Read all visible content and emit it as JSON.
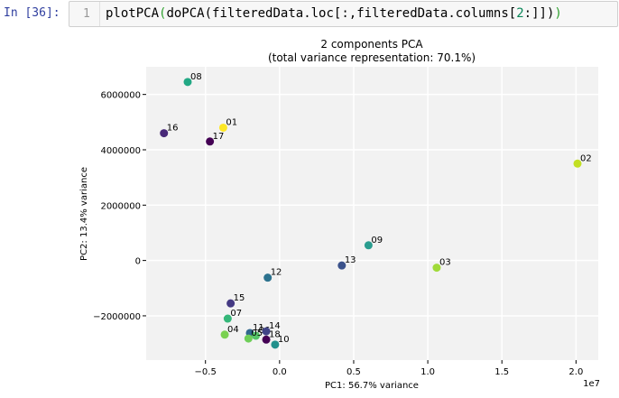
{
  "cell": {
    "prompt": "In [36]:",
    "line_number": "1",
    "code": {
      "fn": "plotPCA",
      "open1": "(",
      "fn2": "doPCA",
      "open2": "(",
      "arg": "filteredData.loc[:,filteredData.columns[",
      "num": "2",
      "tail": ":]]",
      "close2": ")",
      "close1": ")"
    }
  },
  "colors": {
    "plot_background": "#f2f2f2",
    "grid": "#ffffff",
    "code_paren": "#2ea02e",
    "prompt": "#303f9f"
  },
  "chart_data": {
    "type": "scatter",
    "title_line1": "2 components PCA",
    "title_line2": "(total variance representation: 70.1%)",
    "xlabel": "PC1: 56.7% variance",
    "ylabel": "PC2: 13.4% variance",
    "x_offset_label": "1e7",
    "xlim": [
      -0.9,
      2.15
    ],
    "ylim": [
      -3600000,
      7000000
    ],
    "x_scale": "1e7",
    "xticks": [
      -0.5,
      0.0,
      0.5,
      1.0,
      1.5,
      2.0
    ],
    "xtick_labels": [
      "−0.5",
      "0.0",
      "0.5",
      "1.0",
      "1.5",
      "2.0"
    ],
    "yticks": [
      -2000000,
      0,
      2000000,
      4000000,
      6000000
    ],
    "ytick_labels": [
      "−2000000",
      "0",
      "2000000",
      "4000000",
      "6000000"
    ],
    "grid": true,
    "points": [
      {
        "label": "08",
        "x": -0.62,
        "y": 6450000,
        "color": "#22a884"
      },
      {
        "label": "16",
        "x": -0.78,
        "y": 4600000,
        "color": "#482878"
      },
      {
        "label": "01",
        "x": -0.38,
        "y": 4800000,
        "color": "#fde725"
      },
      {
        "label": "17",
        "x": -0.47,
        "y": 4300000,
        "color": "#440154"
      },
      {
        "label": "02",
        "x": 2.01,
        "y": 3500000,
        "color": "#c2df23"
      },
      {
        "label": "09",
        "x": 0.6,
        "y": 550000,
        "color": "#2a9d8f"
      },
      {
        "label": "13",
        "x": 0.42,
        "y": -180000,
        "color": "#3b528b"
      },
      {
        "label": "03",
        "x": 1.06,
        "y": -260000,
        "color": "#a0da39"
      },
      {
        "label": "12",
        "x": -0.08,
        "y": -620000,
        "color": "#2c728e"
      },
      {
        "label": "15",
        "x": -0.33,
        "y": -1550000,
        "color": "#443983"
      },
      {
        "label": "07",
        "x": -0.35,
        "y": -2100000,
        "color": "#35b779"
      },
      {
        "label": "04",
        "x": -0.37,
        "y": -2680000,
        "color": "#7ad151"
      },
      {
        "label": "11",
        "x": -0.2,
        "y": -2620000,
        "color": "#31688e"
      },
      {
        "label": "06",
        "x": -0.16,
        "y": -2720000,
        "color": "#54c568"
      },
      {
        "label": "05",
        "x": -0.21,
        "y": -2820000,
        "color": "#6ece58"
      },
      {
        "label": "14",
        "x": -0.09,
        "y": -2560000,
        "color": "#414487"
      },
      {
        "label": "18",
        "x": -0.09,
        "y": -2860000,
        "color": "#440154"
      },
      {
        "label": "10",
        "x": -0.03,
        "y": -3040000,
        "color": "#21918c"
      }
    ]
  }
}
